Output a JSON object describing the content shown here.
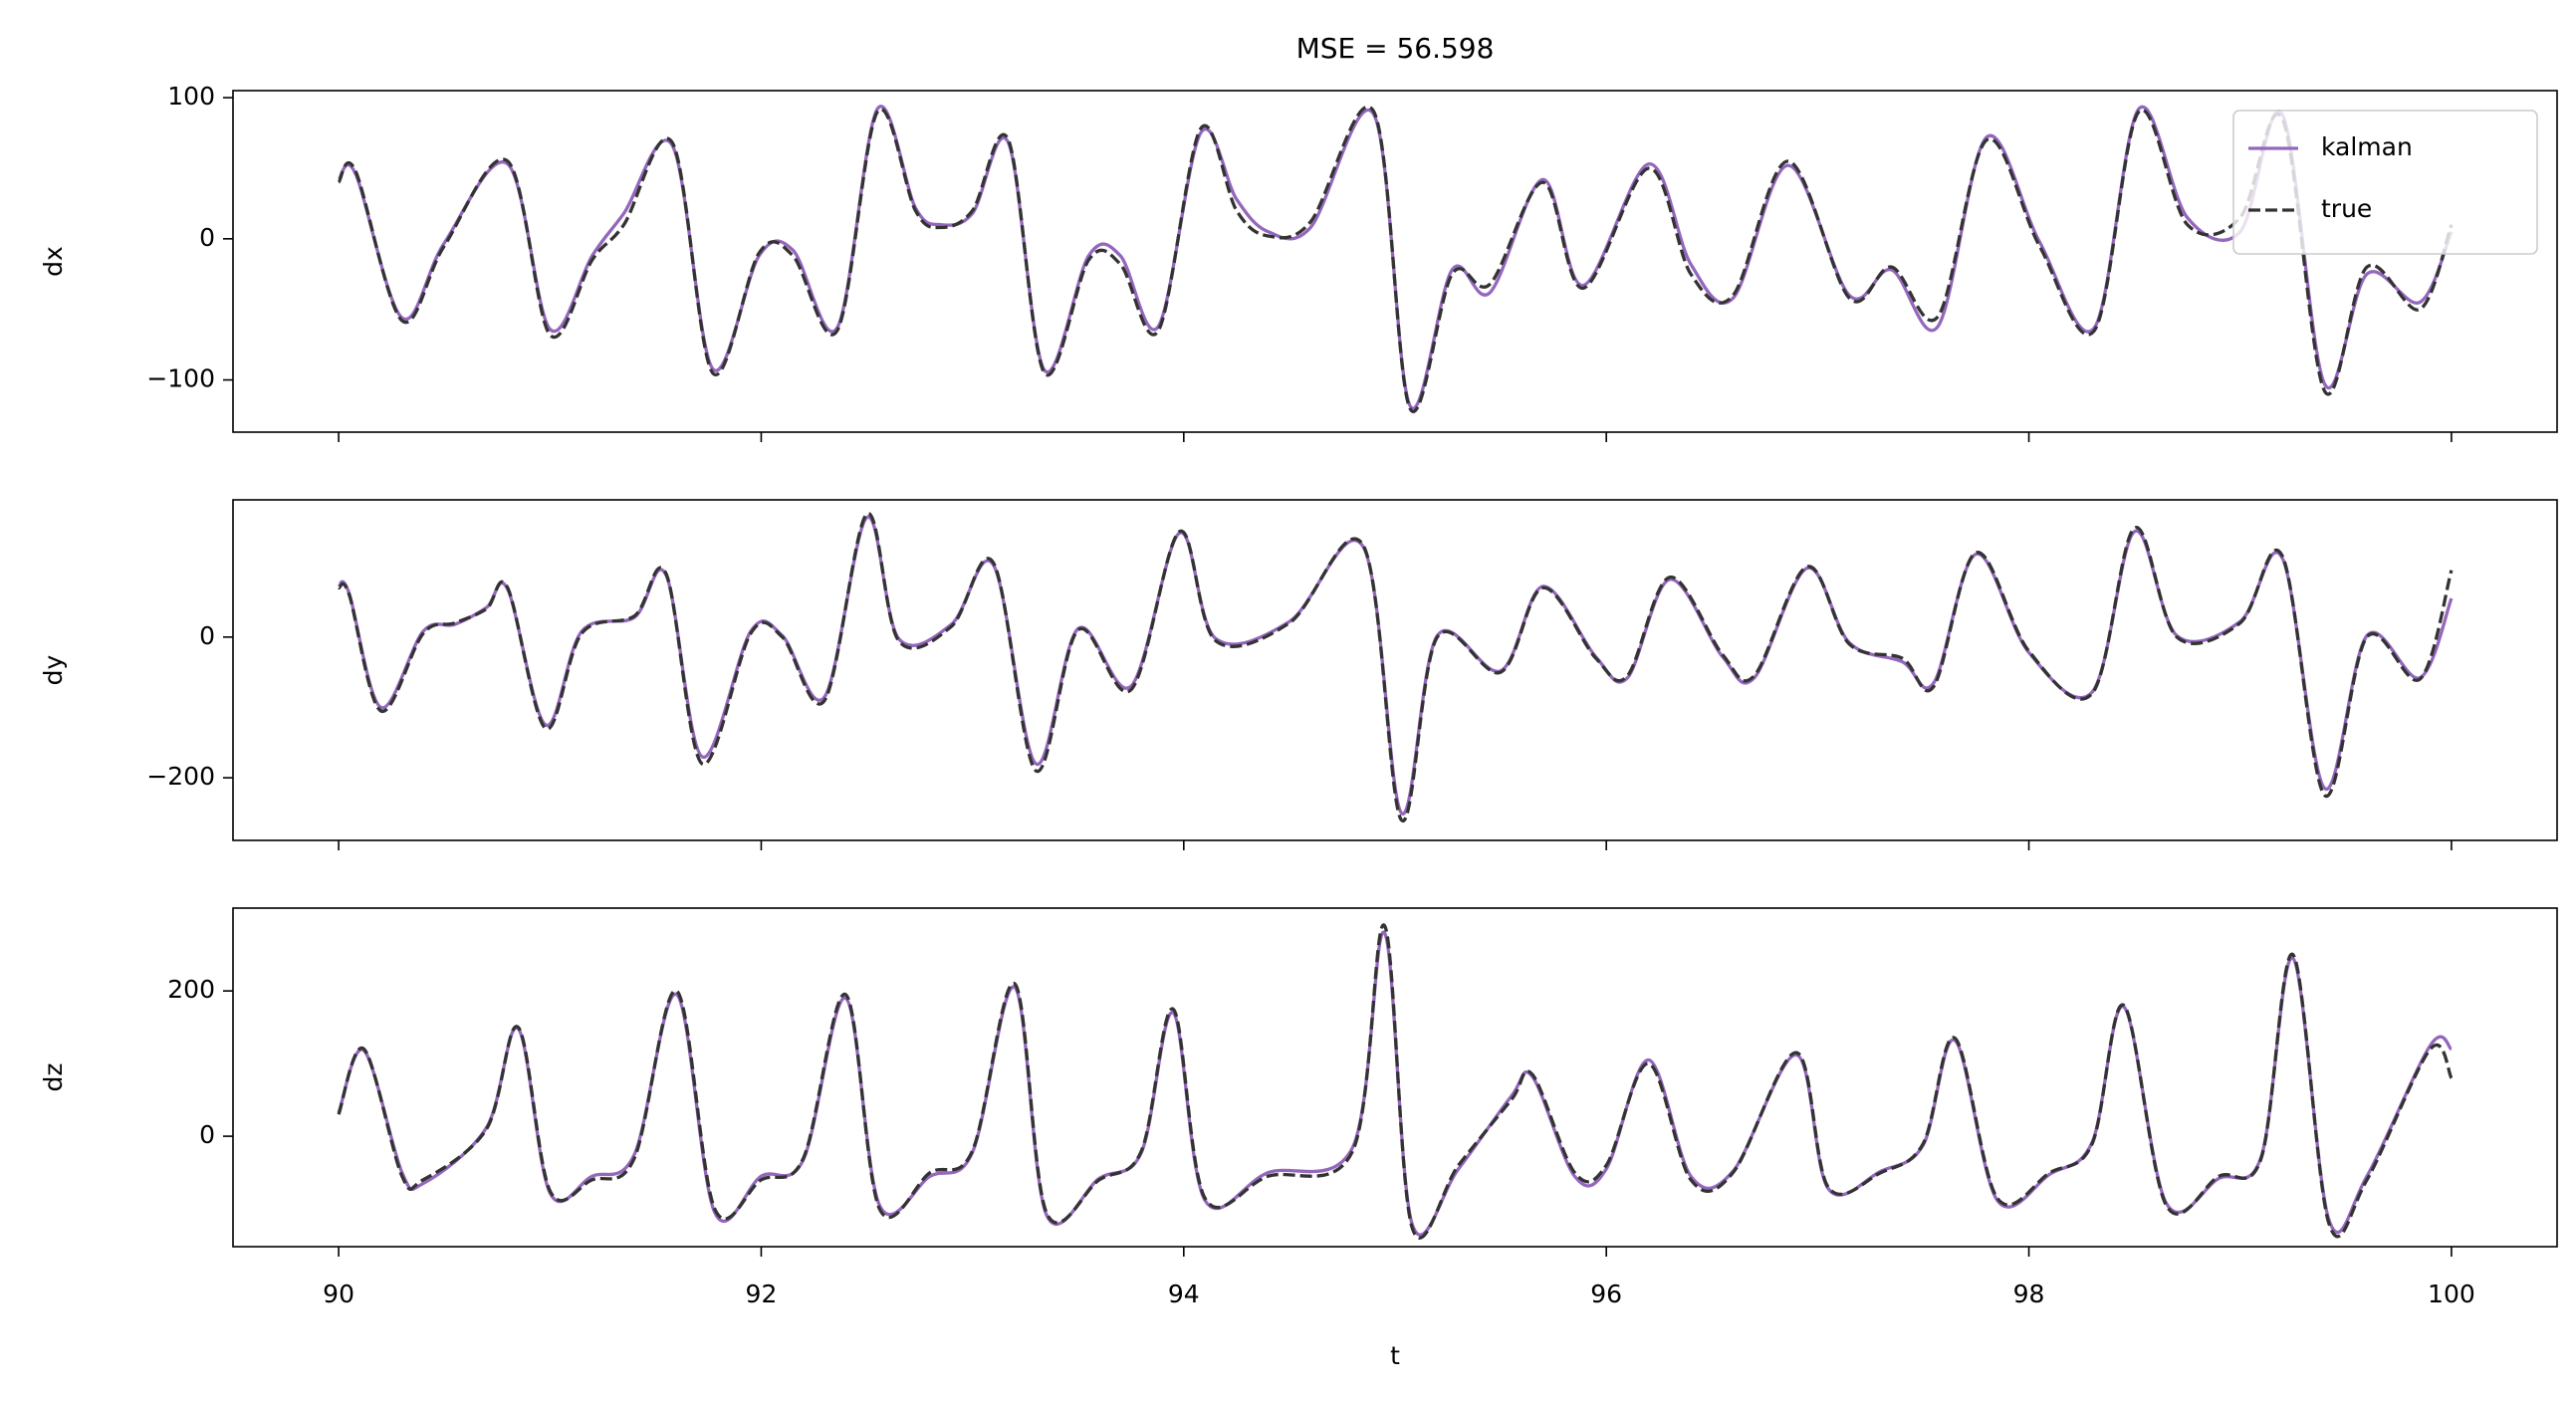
{
  "chart_data": [
    {
      "type": "line",
      "title": "MSE = 56.598",
      "ylabel": "dx",
      "x": [
        90,
        90.08,
        90.3,
        90.5,
        90.8,
        91,
        91.2,
        91.35,
        91.58,
        91.77,
        91.99,
        92.15,
        92.36,
        92.55,
        92.73,
        92.85,
        93,
        93.17,
        93.34,
        93.55,
        93.7,
        93.88,
        94.08,
        94.25,
        94.4,
        94.6,
        94.9,
        95.07,
        95.27,
        95.45,
        95.7,
        95.89,
        96.2,
        96.4,
        96.6,
        96.86,
        97.15,
        97.35,
        97.57,
        97.8,
        98.05,
        98.31,
        98.52,
        98.75,
        99,
        99.2,
        99.4,
        99.6,
        99.85,
        100
      ],
      "series": [
        {
          "name": "kalman",
          "color": "#9467bd",
          "dashed": false,
          "values": [
            42,
            46,
            -56,
            -3,
            53,
            -64,
            -12,
            18,
            66,
            -92,
            -12,
            -8,
            -63,
            92,
            22,
            10,
            18,
            68,
            -93,
            -12,
            -12,
            -62,
            75,
            28,
            5,
            8,
            88,
            -118,
            -22,
            -38,
            42,
            -33,
            53,
            -18,
            -42,
            52,
            -40,
            -22,
            -62,
            72,
            -2,
            -63,
            92,
            15,
            5,
            88,
            -103,
            -25,
            -45,
            5
          ]
        },
        {
          "name": "true",
          "color": "#333333",
          "dashed": true,
          "values": [
            40,
            48,
            -58,
            -5,
            55,
            -68,
            -15,
            10,
            68,
            -95,
            -10,
            -12,
            -65,
            90,
            20,
            8,
            20,
            70,
            -95,
            -15,
            -18,
            -65,
            78,
            20,
            2,
            12,
            90,
            -120,
            -25,
            -32,
            40,
            -35,
            50,
            -25,
            -40,
            55,
            -42,
            -20,
            -55,
            70,
            -5,
            -65,
            90,
            10,
            15,
            85,
            -108,
            -20,
            -50,
            10
          ]
        }
      ],
      "xlim": [
        89.5,
        100.5
      ],
      "xticks": [
        90,
        92,
        94,
        96,
        98,
        100
      ],
      "ylim": [
        -137,
        105
      ],
      "yticks": [
        {
          "value": -100,
          "label": "−100"
        },
        0,
        100
      ],
      "legend": "upper right"
    },
    {
      "type": "line",
      "ylabel": "dy",
      "x": [
        90,
        90.05,
        90.2,
        90.4,
        90.55,
        90.7,
        90.8,
        90.98,
        91.15,
        91.4,
        91.55,
        91.72,
        91.95,
        92.1,
        92.3,
        92.5,
        92.65,
        92.9,
        93.1,
        93.3,
        93.5,
        93.75,
        93.98,
        94.15,
        94.5,
        94.85,
        95.03,
        95.2,
        95.5,
        95.7,
        95.95,
        96.1,
        96.3,
        96.55,
        96.7,
        96.95,
        97.15,
        97.4,
        97.55,
        97.75,
        98,
        98.3,
        98.5,
        98.7,
        99,
        99.2,
        99.4,
        99.6,
        99.85,
        100
      ],
      "series": [
        {
          "color": "#9467bd",
          "dashed": false,
          "values": [
            75,
            62,
            -100,
            8,
            18,
            42,
            68,
            -125,
            8,
            28,
            88,
            -170,
            8,
            2,
            -85,
            170,
            -2,
            18,
            102,
            -180,
            12,
            -70,
            148,
            -2,
            22,
            128,
            -250,
            2,
            -48,
            72,
            -28,
            -58,
            82,
            -28,
            -58,
            98,
            -8,
            -35,
            -65,
            118,
            -22,
            -78,
            150,
            2,
            22,
            112,
            -215,
            2,
            -58,
            55
          ]
        },
        {
          "color": "#333333",
          "dashed": true,
          "values": [
            70,
            60,
            -105,
            5,
            20,
            40,
            70,
            -130,
            5,
            30,
            90,
            -180,
            5,
            0,
            -90,
            175,
            -5,
            15,
            105,
            -190,
            10,
            -75,
            150,
            -5,
            20,
            130,
            -260,
            0,
            -50,
            70,
            -30,
            -55,
            85,
            -25,
            -55,
            100,
            -10,
            -30,
            -70,
            120,
            -20,
            -80,
            155,
            0,
            20,
            115,
            -225,
            0,
            -60,
            95
          ]
        }
      ],
      "xlim": [
        89.5,
        100.5
      ],
      "xticks": [
        90,
        92,
        94,
        96,
        98,
        100
      ],
      "ylim": [
        -289,
        195
      ],
      "yticks": [
        {
          "value": -200,
          "label": "−200"
        },
        0
      ]
    },
    {
      "type": "line",
      "ylabel": "dz",
      "xlabel": "t",
      "x": [
        90,
        90.12,
        90.3,
        90.4,
        90.7,
        90.85,
        91,
        91.2,
        91.4,
        91.6,
        91.78,
        92,
        92.2,
        92.4,
        92.56,
        92.8,
        93,
        93.2,
        93.35,
        93.6,
        93.8,
        93.95,
        94.1,
        94.4,
        94.8,
        94.95,
        95.08,
        95.3,
        95.55,
        95.65,
        95.85,
        96,
        96.2,
        96.4,
        96.6,
        96.9,
        97.05,
        97.3,
        97.5,
        97.65,
        97.85,
        98.1,
        98.3,
        98.45,
        98.65,
        98.9,
        99.1,
        99.25,
        99.42,
        99.6,
        99.9,
        100
      ],
      "series": [
        {
          "color": "#9467bd",
          "dashed": false,
          "values": [
            32,
            118,
            -50,
            -65,
            12,
            148,
            -78,
            -55,
            -25,
            195,
            -105,
            -55,
            -32,
            190,
            -95,
            -55,
            -22,
            205,
            -108,
            -58,
            -22,
            170,
            -88,
            -50,
            -15,
            280,
            -120,
            -45,
            55,
            82,
            -55,
            -45,
            105,
            -55,
            -48,
            112,
            -72,
            -48,
            -12,
            132,
            -88,
            -52,
            -8,
            178,
            -92,
            -58,
            -28,
            245,
            -115,
            -55,
            125,
            120
          ]
        },
        {
          "color": "#333333",
          "dashed": true,
          "values": [
            30,
            120,
            -55,
            -60,
            10,
            150,
            -75,
            -60,
            -30,
            200,
            -100,
            -60,
            -30,
            195,
            -100,
            -50,
            -20,
            210,
            -105,
            -60,
            -20,
            175,
            -85,
            -55,
            -20,
            290,
            -125,
            -40,
            50,
            85,
            -50,
            -40,
            100,
            -60,
            -50,
            115,
            -70,
            -50,
            -10,
            135,
            -85,
            -50,
            -10,
            180,
            -95,
            -55,
            -30,
            250,
            -120,
            -60,
            120,
            80
          ]
        }
      ],
      "xlim": [
        89.5,
        100.5
      ],
      "xticks": [
        90,
        92,
        94,
        96,
        98,
        100
      ],
      "ylim": [
        -152,
        314
      ],
      "yticks": [
        0,
        200
      ]
    }
  ]
}
